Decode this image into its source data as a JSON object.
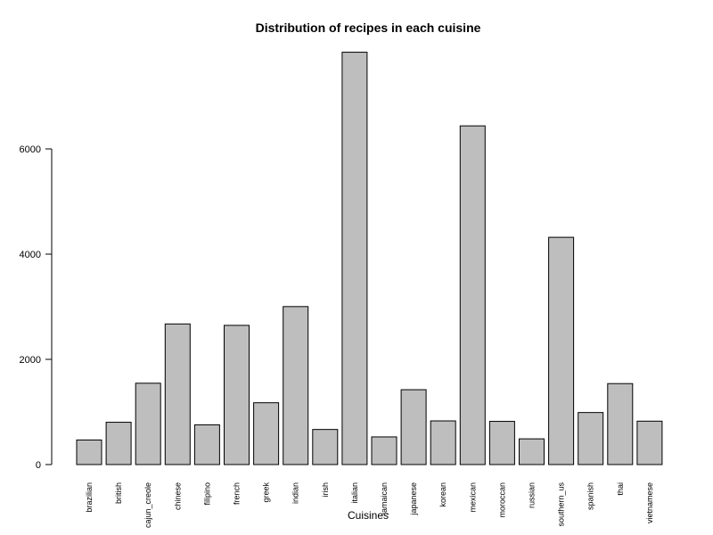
{
  "chart_data": {
    "type": "bar",
    "title": "Distribution of recipes in each cuisine",
    "xlabel": "Cuisines",
    "ylabel": "",
    "categories": [
      "brazilian",
      "british",
      "cajun_creole",
      "chinese",
      "filipino",
      "french",
      "greek",
      "indian",
      "irish",
      "italian",
      "jamaican",
      "japanese",
      "korean",
      "mexican",
      "moroccan",
      "russian",
      "southern_us",
      "spanish",
      "thai",
      "vietnamese"
    ],
    "values": [
      467,
      804,
      1546,
      2673,
      755,
      2646,
      1175,
      3003,
      667,
      7838,
      526,
      1423,
      830,
      6438,
      821,
      489,
      4320,
      989,
      1539,
      825
    ],
    "ylim": [
      0,
      7838
    ],
    "yticks": [
      "0",
      "2000",
      "4000",
      "6000"
    ],
    "bar_color": "#bebebe",
    "grid": false,
    "legend": "none"
  }
}
